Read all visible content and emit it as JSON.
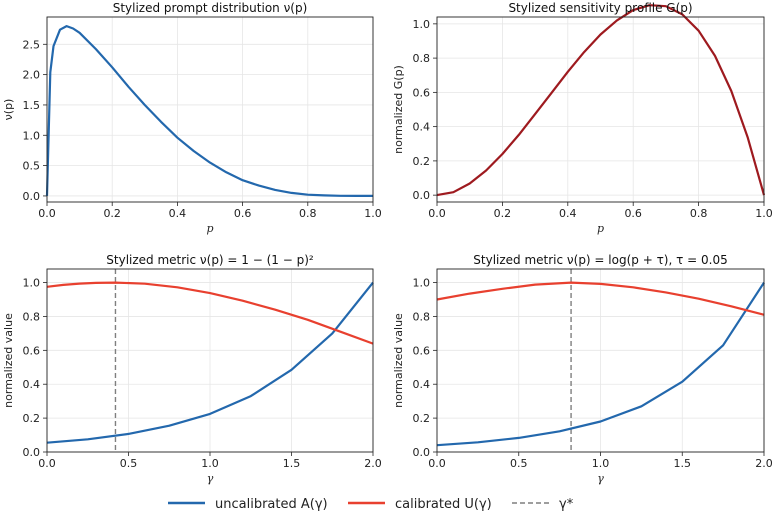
{
  "colors": {
    "blue": "#2368ad",
    "red": "#e8402f",
    "darkred": "#9e1a1f",
    "gray": "#7f7f7f"
  },
  "chart_data": [
    {
      "type": "line",
      "title": "Stylized prompt distribution ν(p)",
      "xlabel": "p",
      "ylabel": "ν(p)",
      "xlim": [
        0,
        1
      ],
      "ylim": [
        -0.1,
        2.95
      ],
      "xticks": [
        "0.0",
        "0.2",
        "0.4",
        "0.6",
        "0.8",
        "1.0"
      ],
      "yticks": [
        "0.0",
        "0.5",
        "1.0",
        "1.5",
        "2.0",
        "2.5"
      ],
      "grid": true,
      "series": [
        {
          "color": "#2368ad",
          "x": [
            0,
            0.01,
            0.02,
            0.04,
            0.06,
            0.08,
            0.1,
            0.15,
            0.2,
            0.25,
            0.3,
            0.35,
            0.4,
            0.45,
            0.5,
            0.55,
            0.6,
            0.65,
            0.7,
            0.75,
            0.8,
            0.85,
            0.9,
            0.95,
            1.0
          ],
          "y": [
            0,
            2.04,
            2.47,
            2.74,
            2.8,
            2.76,
            2.69,
            2.42,
            2.12,
            1.8,
            1.5,
            1.22,
            0.96,
            0.74,
            0.55,
            0.39,
            0.26,
            0.17,
            0.1,
            0.05,
            0.02,
            0.008,
            0.002,
            0.0,
            0.0
          ]
        }
      ]
    },
    {
      "type": "line",
      "title": "Stylized sensitivity profile G(p)",
      "xlabel": "p",
      "ylabel": "normalized G(p)",
      "xlim": [
        0,
        1
      ],
      "ylim": [
        -0.04,
        1.04
      ],
      "xticks": [
        "0.0",
        "0.2",
        "0.4",
        "0.6",
        "0.8",
        "1.0"
      ],
      "yticks": [
        "0.0",
        "0.2",
        "0.4",
        "0.6",
        "0.8",
        "1.0"
      ],
      "grid": true,
      "series": [
        {
          "color": "#9e1a1f",
          "x": [
            0,
            0.05,
            0.1,
            0.15,
            0.2,
            0.25,
            0.3,
            0.35,
            0.4,
            0.45,
            0.5,
            0.55,
            0.6,
            0.65,
            0.7,
            0.75,
            0.8,
            0.85,
            0.9,
            0.95,
            1.0
          ],
          "y": [
            0,
            0.017,
            0.068,
            0.144,
            0.24,
            0.352,
            0.473,
            0.597,
            0.72,
            0.835,
            0.938,
            1.02,
            1.08,
            1.109,
            1.103,
            1.055,
            0.96,
            0.813,
            0.608,
            0.339,
            0
          ]
        }
      ]
    },
    {
      "type": "line",
      "title": "Stylized metric ν(p) = 1 − (1 − p)²",
      "xlabel": "γ",
      "ylabel": "normalized value",
      "xlim": [
        0,
        2
      ],
      "ylim": [
        0,
        1.08
      ],
      "xticks": [
        "0.0",
        "0.5",
        "1.0",
        "1.5",
        "2.0"
      ],
      "yticks": [
        "0.0",
        "0.2",
        "0.4",
        "0.6",
        "0.8",
        "1.0"
      ],
      "grid": true,
      "vline": 0.42,
      "series": [
        {
          "name": "uncalibrated A(γ)",
          "color": "#2368ad",
          "x": [
            0,
            0.25,
            0.5,
            0.75,
            1.0,
            1.25,
            1.5,
            1.75,
            2.0
          ],
          "y": [
            0.055,
            0.075,
            0.107,
            0.155,
            0.225,
            0.33,
            0.485,
            0.7,
            1.0
          ]
        },
        {
          "name": "calibrated U(γ)",
          "color": "#e8402f",
          "x": [
            0,
            0.1,
            0.2,
            0.3,
            0.42,
            0.6,
            0.8,
            1.0,
            1.2,
            1.4,
            1.6,
            1.8,
            2.0
          ],
          "y": [
            0.975,
            0.986,
            0.994,
            0.998,
            1.0,
            0.993,
            0.972,
            0.938,
            0.893,
            0.84,
            0.78,
            0.71,
            0.64
          ]
        }
      ]
    },
    {
      "type": "line",
      "title": "Stylized metric ν(p) = log(p + τ),  τ = 0.05",
      "xlabel": "γ",
      "ylabel": "normalized value",
      "xlim": [
        0,
        2
      ],
      "ylim": [
        0,
        1.08
      ],
      "xticks": [
        "0.0",
        "0.5",
        "1.0",
        "1.5",
        "2.0"
      ],
      "yticks": [
        "0.0",
        "0.2",
        "0.4",
        "0.6",
        "0.8",
        "1.0"
      ],
      "grid": true,
      "vline": 0.82,
      "series": [
        {
          "name": "uncalibrated A(γ)",
          "color": "#2368ad",
          "x": [
            0,
            0.25,
            0.5,
            0.75,
            1.0,
            1.25,
            1.5,
            1.75,
            2.0
          ],
          "y": [
            0.04,
            0.057,
            0.083,
            0.122,
            0.18,
            0.27,
            0.415,
            0.63,
            1.0
          ]
        },
        {
          "name": "calibrated U(γ)",
          "color": "#e8402f",
          "x": [
            0,
            0.2,
            0.4,
            0.6,
            0.82,
            1.0,
            1.2,
            1.4,
            1.6,
            1.8,
            2.0
          ],
          "y": [
            0.9,
            0.935,
            0.963,
            0.988,
            1.0,
            0.992,
            0.972,
            0.942,
            0.905,
            0.86,
            0.81
          ]
        }
      ]
    }
  ],
  "legend": {
    "items": [
      {
        "label": "uncalibrated A(γ)",
        "color": "#2368ad",
        "style": "solid"
      },
      {
        "label": "calibrated U(γ)",
        "color": "#e8402f",
        "style": "solid"
      },
      {
        "label": "γ*",
        "color": "#7f7f7f",
        "style": "dashed"
      }
    ]
  }
}
